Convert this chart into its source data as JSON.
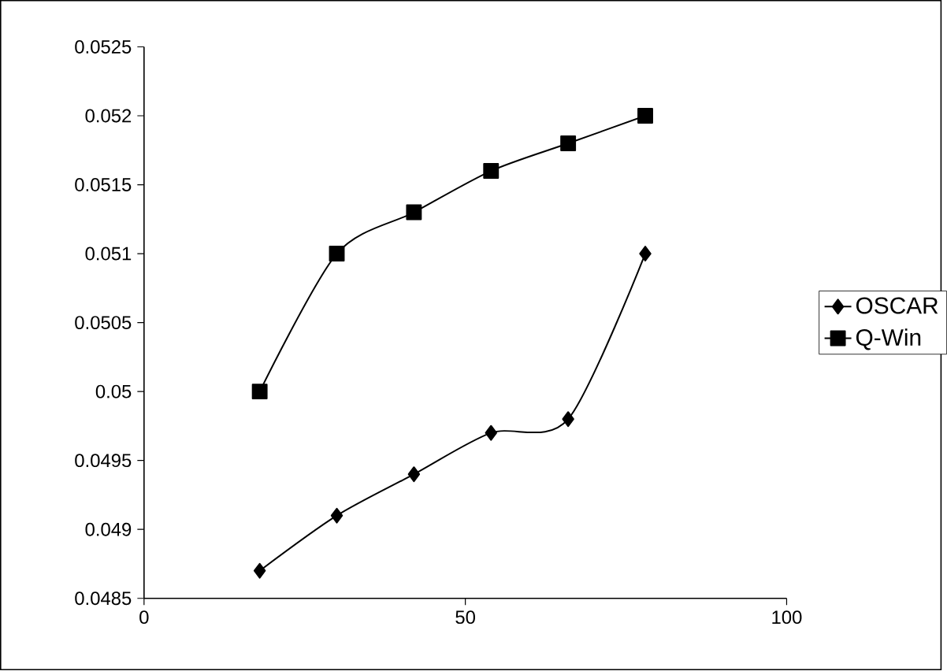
{
  "chart_data": {
    "type": "line",
    "x": [
      18,
      30,
      42,
      54,
      66,
      78
    ],
    "series": [
      {
        "name": "OSCAR",
        "color": "#000000",
        "marker": "diamond",
        "values": [
          0.0487,
          0.0491,
          0.0494,
          0.0497,
          0.0498,
          0.051
        ]
      },
      {
        "name": "Q-Win",
        "color": "#000000",
        "marker": "square",
        "values": [
          0.05,
          0.051,
          0.0513,
          0.0516,
          0.0518,
          0.052
        ]
      }
    ],
    "xlim": [
      0,
      100
    ],
    "xticks": [
      0,
      50,
      100
    ],
    "ylim": [
      0.0485,
      0.0525
    ],
    "yticks": [
      0.0485,
      0.049,
      0.0495,
      0.05,
      0.0505,
      0.051,
      0.0515,
      0.052,
      0.0525
    ],
    "grid": false,
    "legend": "right",
    "line_style": "solid"
  }
}
